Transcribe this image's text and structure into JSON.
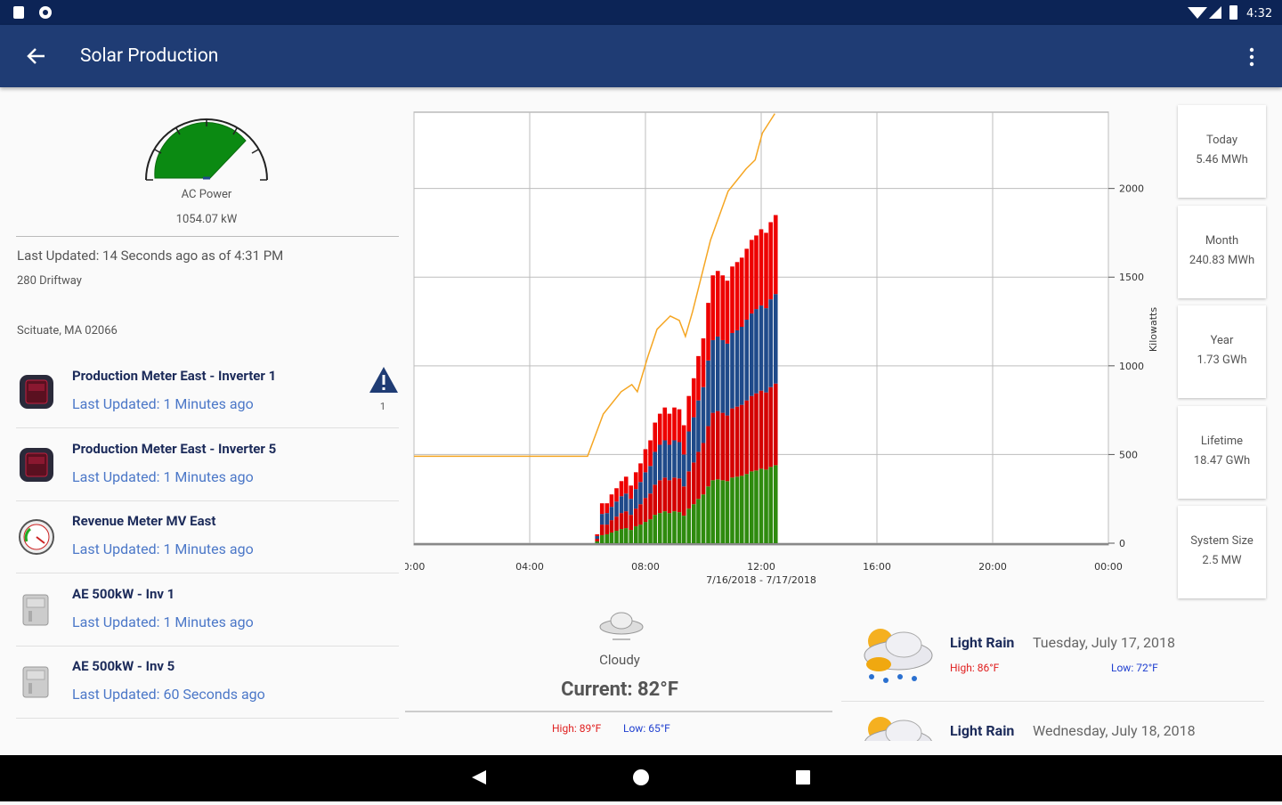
{
  "status_bar": {
    "time": "4:32"
  },
  "app_bar": {
    "title": "Solar Production"
  },
  "summary": {
    "gauge_label": "AC Power",
    "gauge_value": "1054.07 kW",
    "last_updated": "Last Updated: 14 Seconds ago as of 4:31 PM",
    "address_line1": "280 Driftway",
    "address_line2": "Scituate, MA 02066"
  },
  "devices": [
    {
      "name": "Production Meter East - Inverter 1",
      "status": "Last Updated: 1 Minutes ago",
      "icon": "meter",
      "alert_count": "1"
    },
    {
      "name": "Production Meter East - Inverter 5",
      "status": "Last Updated: 1 Minutes ago",
      "icon": "meter"
    },
    {
      "name": "Revenue Meter MV East",
      "status": "Last Updated: 1 Minutes ago",
      "icon": "gauge"
    },
    {
      "name": "AE 500kW - Inv 1",
      "status": "Last Updated: 1 Minutes ago",
      "icon": "inverter"
    },
    {
      "name": "AE 500kW - Inv 5",
      "status": "Last Updated: 60 Seconds ago",
      "icon": "inverter"
    }
  ],
  "chart_data": {
    "type": "bar",
    "stacked": true,
    "grid": true,
    "x_label": "7/16/2018 - 7/17/2018",
    "y_label": "Kilowatts",
    "y_axis_side": "right",
    "xlim": [
      0,
      24
    ],
    "xticks": [
      {
        "value": 0,
        "label": "0:00"
      },
      {
        "value": 4,
        "label": "04:00"
      },
      {
        "value": 8,
        "label": "08:00"
      },
      {
        "value": 12,
        "label": "12:00"
      },
      {
        "value": 16,
        "label": "16:00"
      },
      {
        "value": 20,
        "label": "20:00"
      },
      {
        "value": 24,
        "label": "00:00"
      }
    ],
    "ylim": [
      0,
      2430
    ],
    "yticks": [
      0,
      500,
      1000,
      1500,
      2000
    ],
    "x": [
      6.33,
      6.5,
      6.67,
      6.83,
      7,
      7.17,
      7.33,
      7.5,
      7.67,
      7.83,
      8,
      8.17,
      8.33,
      8.5,
      8.67,
      8.83,
      9,
      9.17,
      9.33,
      9.5,
      9.67,
      9.83,
      10,
      10.17,
      10.33,
      10.5,
      10.67,
      10.83,
      11,
      11.17,
      11.33,
      11.5,
      11.67,
      11.83,
      12,
      12.17,
      12.33,
      12.5
    ],
    "series": [
      {
        "color": "#2e8b0e",
        "values": [
          10,
          45,
          50,
          60,
          70,
          80,
          85,
          75,
          95,
          105,
          120,
          135,
          160,
          170,
          180,
          170,
          180,
          175,
          155,
          195,
          220,
          250,
          275,
          320,
          355,
          360,
          355,
          350,
          370,
          375,
          380,
          390,
          405,
          410,
          420,
          415,
          430,
          440
        ]
      },
      {
        "color": "#d40000",
        "values": [
          15,
          60,
          55,
          70,
          80,
          90,
          95,
          85,
          100,
          115,
          135,
          145,
          170,
          185,
          190,
          185,
          190,
          190,
          165,
          210,
          235,
          265,
          290,
          340,
          380,
          385,
          380,
          370,
          390,
          395,
          400,
          415,
          425,
          435,
          440,
          435,
          450,
          460
        ]
      },
      {
        "color": "#1f4a8a",
        "values": [
          15,
          60,
          65,
          75,
          85,
          95,
          100,
          90,
          110,
          125,
          145,
          155,
          185,
          200,
          210,
          200,
          210,
          205,
          180,
          225,
          255,
          290,
          315,
          370,
          410,
          420,
          410,
          405,
          425,
          430,
          440,
          455,
          465,
          475,
          480,
          475,
          495,
          505
        ]
      },
      {
        "color": "#ee0000",
        "values": [
          10,
          60,
          55,
          70,
          75,
          85,
          95,
          75,
          95,
          105,
          130,
          145,
          165,
          175,
          185,
          175,
          185,
          185,
          165,
          200,
          220,
          250,
          275,
          325,
          365,
          370,
          365,
          355,
          375,
          385,
          390,
          400,
          415,
          415,
          430,
          425,
          435,
          445
        ]
      }
    ],
    "line": {
      "type": "line",
      "color": "#f5a623",
      "x": [
        0,
        6,
        6.54,
        7.16,
        7.53,
        7.72,
        8.09,
        8.4,
        8.86,
        9.17,
        9.38,
        9.63,
        10.25,
        10.86,
        11.48,
        11.79,
        12.04,
        12.47
      ],
      "values": [
        490,
        490,
        728,
        854,
        894,
        854,
        1055,
        1206,
        1281,
        1256,
        1166,
        1307,
        1709,
        1985,
        2111,
        2161,
        2312,
        2422
      ]
    }
  },
  "current_weather": {
    "condition": "Cloudy",
    "current": "Current: 82°F",
    "high": "High: 89°F",
    "low": "Low: 65°F"
  },
  "forecast": [
    {
      "condition": "Light Rain",
      "date": "Tuesday, July 17, 2018",
      "high": "High: 86°F",
      "low": "Low: 72°F"
    },
    {
      "condition": "Light Rain",
      "date": "Wednesday, July 18, 2018"
    }
  ],
  "stats": [
    {
      "label": "Today",
      "value": "5.46 MWh"
    },
    {
      "label": "Month",
      "value": "240.83 MWh"
    },
    {
      "label": "Year",
      "value": "1.73 GWh"
    },
    {
      "label": "Lifetime",
      "value": "18.47 GWh"
    },
    {
      "label": "System Size",
      "value": "2.5 MW"
    }
  ]
}
